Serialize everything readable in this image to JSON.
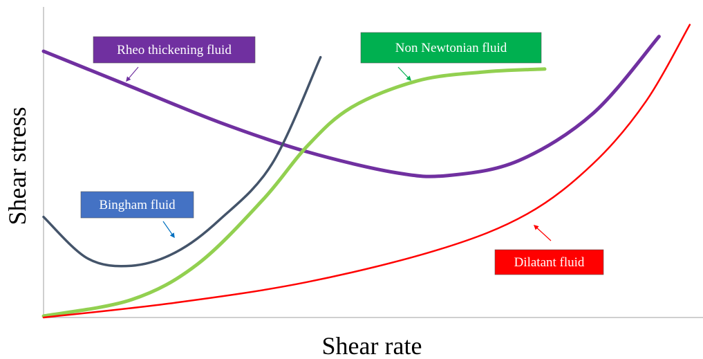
{
  "chart_data": {
    "type": "line",
    "xlabel": "Shear rate",
    "ylabel": "Shear stress",
    "series": [
      {
        "name": "Rheo thickening fluid",
        "color": "#7030A0",
        "points": [
          [
            0,
            9.0
          ],
          [
            2.0,
            7.8
          ],
          [
            4.0,
            6.6
          ],
          [
            6.0,
            5.6
          ],
          [
            8.0,
            4.9
          ],
          [
            9.2,
            4.8
          ],
          [
            10.8,
            5.3
          ],
          [
            12.5,
            6.9
          ],
          [
            14.0,
            9.5
          ]
        ]
      },
      {
        "name": "Bingham fluid",
        "color": "#44546A",
        "points": [
          [
            0,
            3.4
          ],
          [
            1.0,
            2.0
          ],
          [
            2.0,
            1.75
          ],
          [
            3.0,
            2.2
          ],
          [
            4.0,
            3.3
          ],
          [
            5.2,
            5.2
          ],
          [
            6.3,
            8.8
          ]
        ]
      },
      {
        "name": "Non Newtonian fluid",
        "color": "#92D050",
        "points": [
          [
            0,
            0.05
          ],
          [
            2.0,
            0.6
          ],
          [
            3.5,
            1.8
          ],
          [
            5.0,
            4.0
          ],
          [
            6.0,
            5.8
          ],
          [
            7.0,
            7.1
          ],
          [
            8.5,
            8.0
          ],
          [
            10.0,
            8.3
          ],
          [
            11.4,
            8.4
          ]
        ]
      },
      {
        "name": "Dilatant fluid",
        "color": "#FF0000",
        "points": [
          [
            0,
            0
          ],
          [
            3.0,
            0.5
          ],
          [
            6.0,
            1.2
          ],
          [
            9.0,
            2.3
          ],
          [
            11.0,
            3.5
          ],
          [
            12.5,
            5.2
          ],
          [
            13.7,
            7.3
          ],
          [
            14.7,
            9.9
          ]
        ]
      }
    ],
    "labels": [
      {
        "series": "Rheo thickening fluid",
        "text": "Rheo thickening fluid",
        "bg": "#7030A0"
      },
      {
        "series": "Non Newtonian fluid",
        "text": "Non Newtonian fluid",
        "bg": "#00B050"
      },
      {
        "series": "Bingham fluid",
        "text": "Bingham fluid",
        "bg": "#4472C4"
      },
      {
        "series": "Dilatant fluid",
        "text": "Dilatant fluid",
        "bg": "#FF0000"
      }
    ],
    "xlim": [
      0,
      15
    ],
    "ylim": [
      0,
      10.5
    ],
    "grid": false
  }
}
